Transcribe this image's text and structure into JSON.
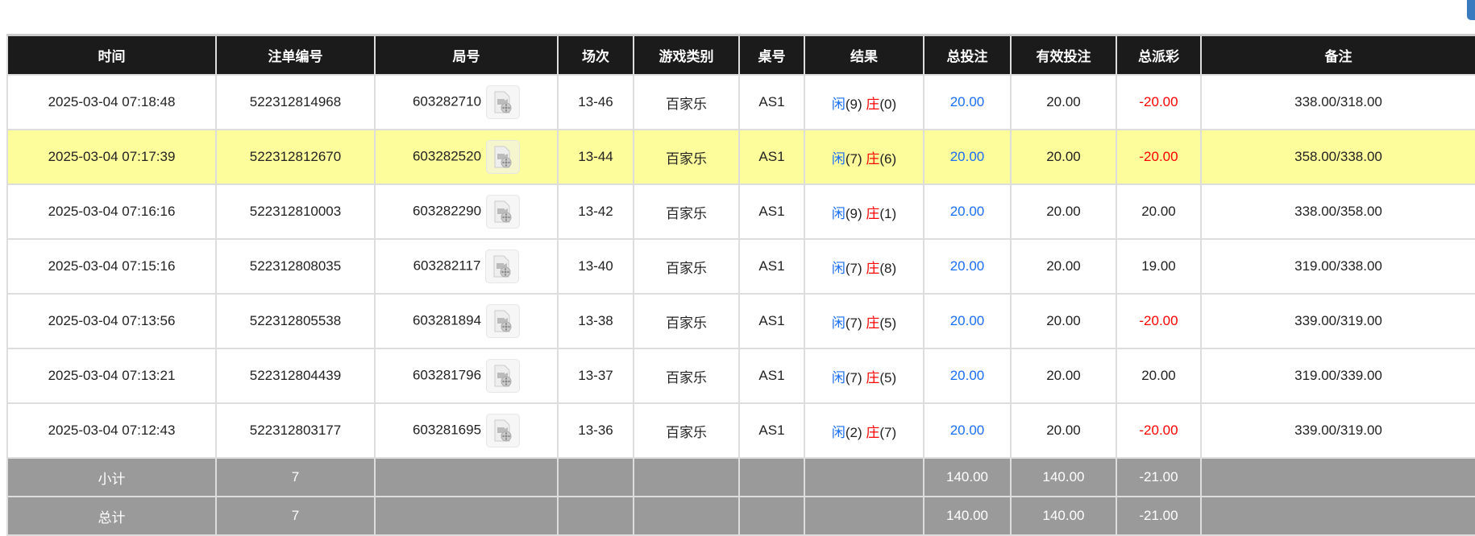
{
  "headers": [
    "时间",
    "注单编号",
    "局号",
    "场次",
    "游戏类别",
    "桌号",
    "结果",
    "总投注",
    "有效投注",
    "总派彩",
    "备注"
  ],
  "rows": [
    {
      "time": "2025-03-04 07:18:48",
      "bet_id": "522312814968",
      "round": "603282710",
      "session": "13-46",
      "game": "百家乐",
      "table": "AS1",
      "player_label": "闲",
      "player_score": "(9)",
      "banker_label": "庄",
      "banker_score": "(0)",
      "total_bet": "20.00",
      "valid_bet": "20.00",
      "payout": "-20.00",
      "payout_negative": true,
      "note": "338.00/318.00",
      "highlight": false
    },
    {
      "time": "2025-03-04 07:17:39",
      "bet_id": "522312812670",
      "round": "603282520",
      "session": "13-44",
      "game": "百家乐",
      "table": "AS1",
      "player_label": "闲",
      "player_score": "(7)",
      "banker_label": "庄",
      "banker_score": "(6)",
      "total_bet": "20.00",
      "valid_bet": "20.00",
      "payout": "-20.00",
      "payout_negative": true,
      "note": "358.00/338.00",
      "highlight": true
    },
    {
      "time": "2025-03-04 07:16:16",
      "bet_id": "522312810003",
      "round": "603282290",
      "session": "13-42",
      "game": "百家乐",
      "table": "AS1",
      "player_label": "闲",
      "player_score": "(9)",
      "banker_label": "庄",
      "banker_score": "(1)",
      "total_bet": "20.00",
      "valid_bet": "20.00",
      "payout": "20.00",
      "payout_negative": false,
      "note": "338.00/358.00",
      "highlight": false
    },
    {
      "time": "2025-03-04 07:15:16",
      "bet_id": "522312808035",
      "round": "603282117",
      "session": "13-40",
      "game": "百家乐",
      "table": "AS1",
      "player_label": "闲",
      "player_score": "(7)",
      "banker_label": "庄",
      "banker_score": "(8)",
      "total_bet": "20.00",
      "valid_bet": "20.00",
      "payout": "19.00",
      "payout_negative": false,
      "note": "319.00/338.00",
      "highlight": false
    },
    {
      "time": "2025-03-04 07:13:56",
      "bet_id": "522312805538",
      "round": "603281894",
      "session": "13-38",
      "game": "百家乐",
      "table": "AS1",
      "player_label": "闲",
      "player_score": "(7)",
      "banker_label": "庄",
      "banker_score": "(5)",
      "total_bet": "20.00",
      "valid_bet": "20.00",
      "payout": "-20.00",
      "payout_negative": true,
      "note": "339.00/319.00",
      "highlight": false
    },
    {
      "time": "2025-03-04 07:13:21",
      "bet_id": "522312804439",
      "round": "603281796",
      "session": "13-37",
      "game": "百家乐",
      "table": "AS1",
      "player_label": "闲",
      "player_score": "(7)",
      "banker_label": "庄",
      "banker_score": "(5)",
      "total_bet": "20.00",
      "valid_bet": "20.00",
      "payout": "20.00",
      "payout_negative": false,
      "note": "319.00/339.00",
      "highlight": false
    },
    {
      "time": "2025-03-04 07:12:43",
      "bet_id": "522312803177",
      "round": "603281695",
      "session": "13-36",
      "game": "百家乐",
      "table": "AS1",
      "player_label": "闲",
      "player_score": "(2)",
      "banker_label": "庄",
      "banker_score": "(7)",
      "total_bet": "20.00",
      "valid_bet": "20.00",
      "payout": "-20.00",
      "payout_negative": true,
      "note": "339.00/319.00",
      "highlight": false
    }
  ],
  "subtotal": {
    "label": "小计",
    "count": "7",
    "total_bet": "140.00",
    "valid_bet": "140.00",
    "payout": "-21.00"
  },
  "total": {
    "label": "总计",
    "count": "7",
    "total_bet": "140.00",
    "valid_bet": "140.00",
    "payout": "-21.00"
  },
  "colors": {
    "header_bg": "#1b1b1b",
    "highlight_row": "#fdfd9c",
    "summary_bg": "#9a9a9a",
    "blue": "#1a6ef5",
    "red": "#ff0000"
  },
  "icons": {
    "replay": "video-replay-icon"
  }
}
